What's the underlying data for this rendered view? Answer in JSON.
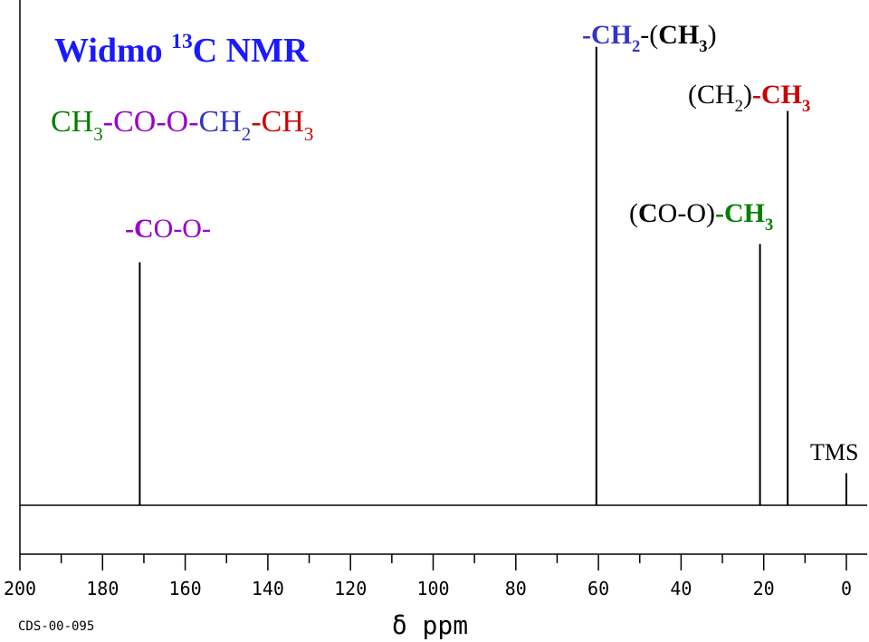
{
  "chart_data": {
    "type": "stem",
    "title": [
      {
        "text": "Widmo "
      },
      {
        "text": "13",
        "sup": true
      },
      {
        "text": "C NMR"
      }
    ],
    "title_color": "#1a1aff",
    "subtitle": [
      {
        "text": "CH",
        "color": "#008000"
      },
      {
        "text": "3",
        "sub": true,
        "color": "#008000"
      },
      {
        "text": "-CO-O-",
        "color": "#9900cc"
      },
      {
        "text": "CH",
        "color": "#3333cc"
      },
      {
        "text": "2",
        "sub": true,
        "color": "#3333cc"
      },
      {
        "text": "-CH",
        "color": "#cc0000"
      },
      {
        "text": "3",
        "sub": true,
        "color": "#cc0000"
      }
    ],
    "annotations": [
      [
        {
          "text": "-C",
          "color": "#9900cc",
          "bold": true
        },
        {
          "text": "O-O-",
          "color": "#9900cc"
        }
      ],
      [
        {
          "text": "-CH",
          "color": "#3333cc",
          "bold": true
        },
        {
          "text": "2",
          "sub": true,
          "color": "#3333cc",
          "bold": true
        },
        {
          "text": "-(",
          "color": "#000000"
        },
        {
          "text": "CH",
          "color": "#000000",
          "bold": true
        },
        {
          "text": "3",
          "sub": true,
          "color": "#000000",
          "bold": true
        },
        {
          "text": ")",
          "color": "#000000"
        }
      ],
      [
        {
          "text": "(CH",
          "color": "#000000"
        },
        {
          "text": "2",
          "sub": true,
          "color": "#000000"
        },
        {
          "text": ")",
          "color": "#000000"
        },
        {
          "text": "-CH",
          "color": "#cc0000",
          "bold": true
        },
        {
          "text": "3",
          "sub": true,
          "color": "#cc0000",
          "bold": true
        }
      ],
      [
        {
          "text": "(",
          "color": "#000000"
        },
        {
          "text": "C",
          "color": "#000000",
          "bold": true
        },
        {
          "text": "O-O)",
          "color": "#000000"
        },
        {
          "text": "-CH",
          "color": "#008000",
          "bold": true
        },
        {
          "text": "3",
          "sub": true,
          "color": "#008000",
          "bold": true
        }
      ],
      [
        {
          "text": "TMS",
          "color": "#000000"
        }
      ]
    ],
    "x_label": "δ ppm",
    "footnote": "CDS-00-095",
    "x": [
      171,
      60.5,
      20.9,
      14.2,
      0
    ],
    "values": [
      53,
      100,
      57,
      86,
      7
    ],
    "color": "#000000",
    "xlim": [
      200,
      0
    ],
    "xticks": [
      200,
      180,
      160,
      140,
      120,
      100,
      80,
      60,
      40,
      20,
      0
    ],
    "ylim": [
      0,
      110
    ]
  }
}
